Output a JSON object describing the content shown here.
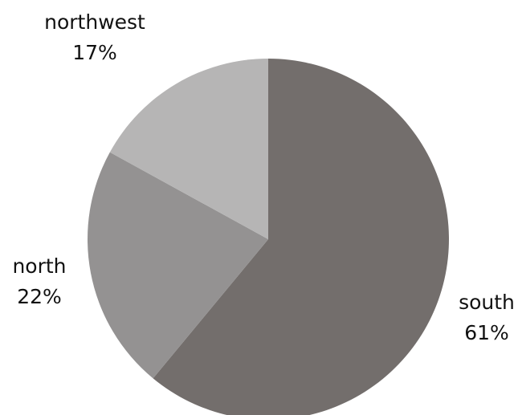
{
  "chart_data": {
    "type": "pie",
    "title": "",
    "start": "top",
    "direction": "clockwise",
    "slices": [
      {
        "label": "south",
        "value": 61,
        "value_label": "61%",
        "color": "#736e6c"
      },
      {
        "label": "north",
        "value": 22,
        "value_label": "22%",
        "color": "#949292"
      },
      {
        "label": "northwest",
        "value": 17,
        "value_label": "17%",
        "color": "#b6b5b5"
      }
    ]
  }
}
